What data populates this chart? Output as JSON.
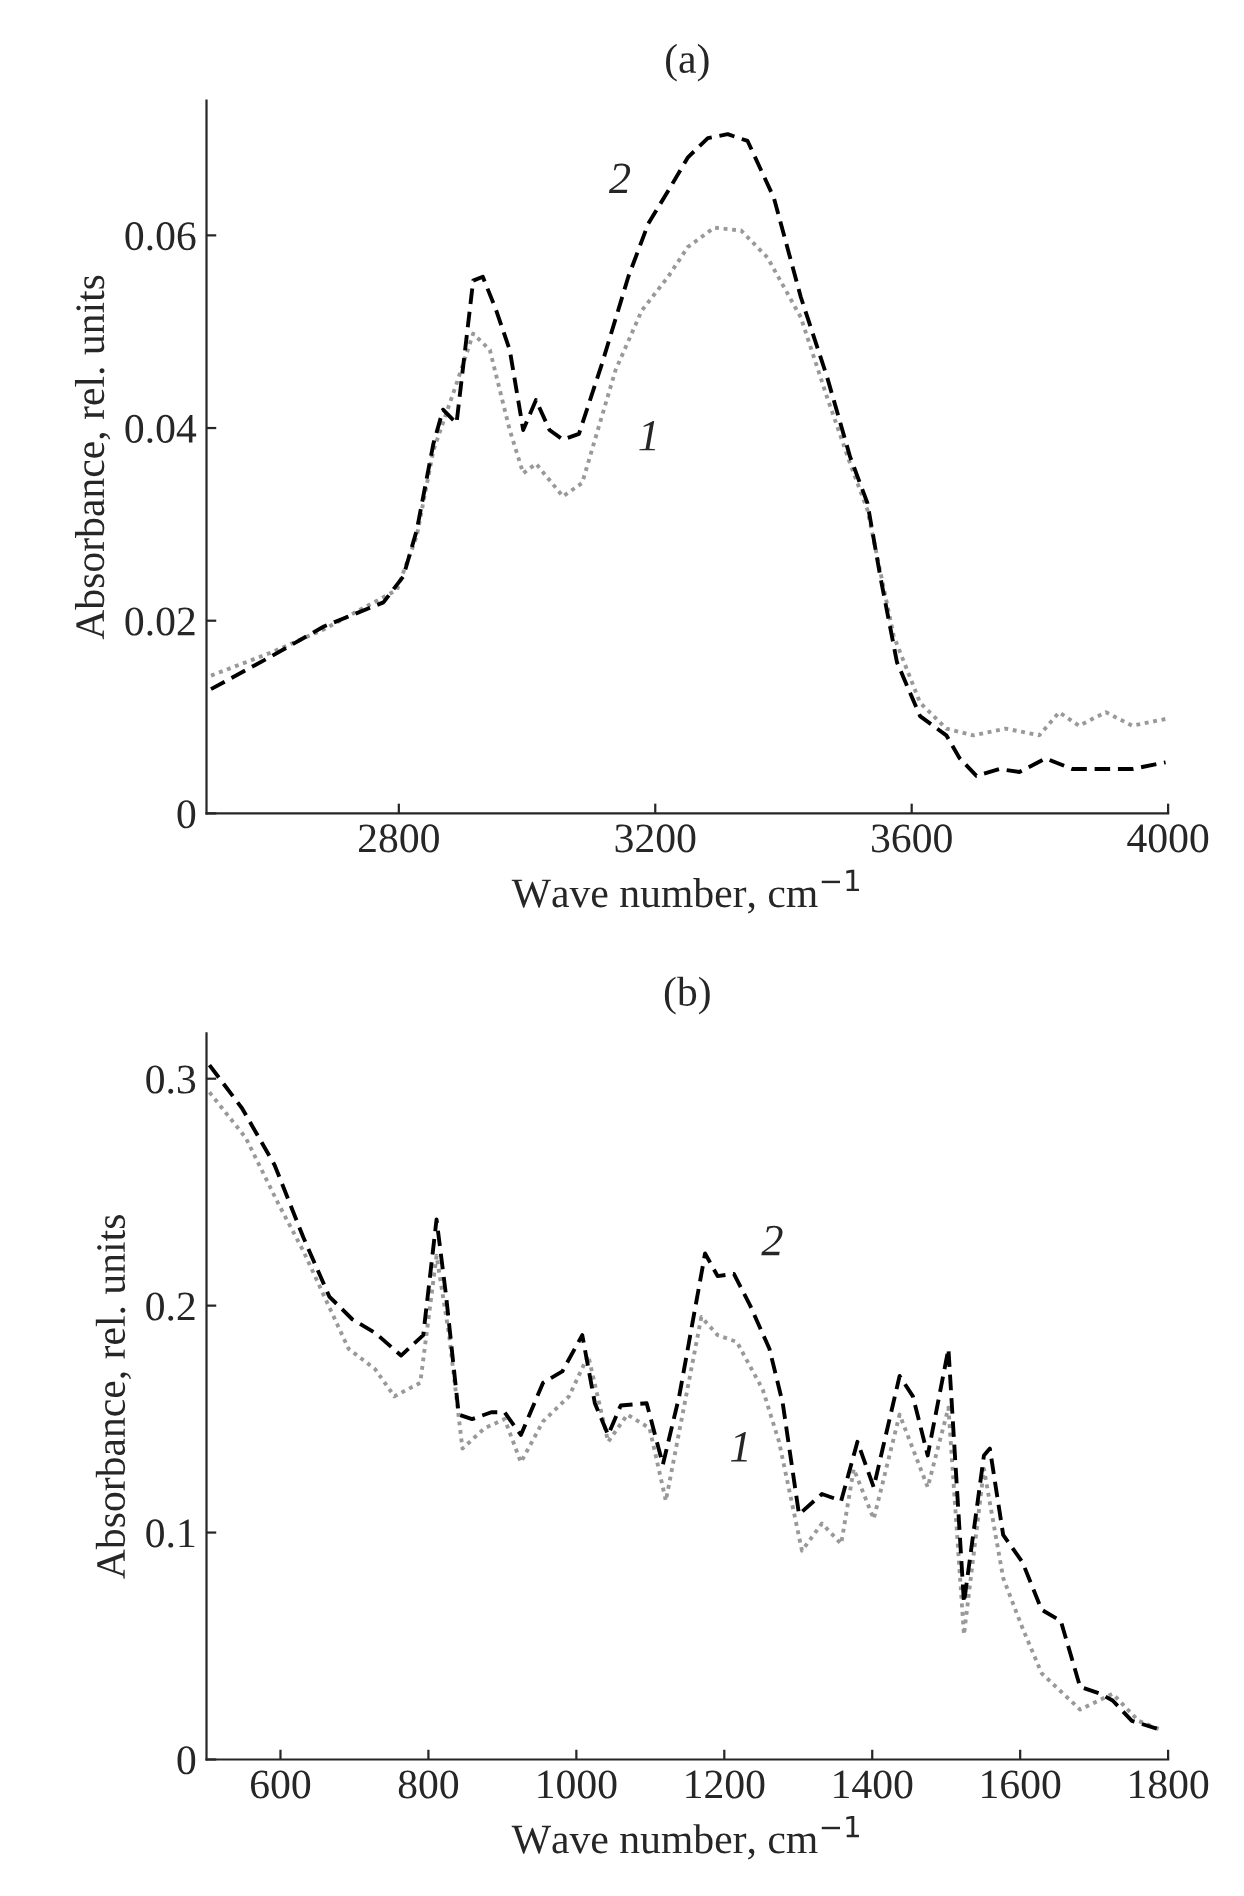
{
  "chart_data": [
    {
      "type": "line",
      "title": "(a)",
      "xlabel": "Wave number, cm$^{−1}$",
      "ylabel": "Absorbance, rel. units",
      "xlim": [
        2500,
        4000
      ],
      "ylim": [
        0,
        0.074
      ],
      "xticks": [
        2800,
        3200,
        3600,
        4000
      ],
      "yticks": [
        0,
        0.02,
        0.04,
        0.06
      ],
      "grid": false,
      "legend": false,
      "series": [
        {
          "name": "1",
          "color": "#999999",
          "line_style": "dotted",
          "x": [
            2507,
            2601,
            2683,
            2797,
            2828,
            2854,
            2890,
            2916,
            2942,
            2973,
            2994,
            3014,
            3056,
            3086,
            3138,
            3179,
            3220,
            3251,
            3292,
            3334,
            3375,
            3427,
            3468,
            3504,
            3531,
            3572,
            3613,
            3654,
            3696,
            3747,
            3799,
            3830,
            3861,
            3903,
            3944,
            3996
          ],
          "values": [
            0.0143,
            0.0167,
            0.0191,
            0.0232,
            0.0288,
            0.0377,
            0.0446,
            0.0498,
            0.0481,
            0.0398,
            0.0353,
            0.0363,
            0.0329,
            0.0343,
            0.046,
            0.0522,
            0.0557,
            0.0588,
            0.0608,
            0.0605,
            0.0577,
            0.0515,
            0.0432,
            0.0363,
            0.0315,
            0.0184,
            0.0115,
            0.0088,
            0.0081,
            0.0088,
            0.0081,
            0.0105,
            0.0091,
            0.0105,
            0.0091,
            0.0098
          ]
        },
        {
          "name": "2",
          "color": "#000000",
          "line_style": "dashed",
          "x": [
            2507,
            2601,
            2683,
            2776,
            2807,
            2828,
            2854,
            2869,
            2890,
            2916,
            2931,
            2952,
            2973,
            2994,
            3014,
            3035,
            3056,
            3081,
            3117,
            3158,
            3189,
            3220,
            3251,
            3282,
            3313,
            3344,
            3385,
            3427,
            3468,
            3504,
            3531,
            3551,
            3577,
            3613,
            3654,
            3675,
            3701,
            3737,
            3768,
            3809,
            3851,
            3892,
            3944,
            3996
          ],
          "values": [
            0.0129,
            0.0163,
            0.0194,
            0.0219,
            0.0246,
            0.0294,
            0.0384,
            0.0419,
            0.0405,
            0.0553,
            0.0557,
            0.0522,
            0.0481,
            0.0398,
            0.0429,
            0.0398,
            0.0388,
            0.0394,
            0.0467,
            0.0557,
            0.0612,
            0.0646,
            0.0681,
            0.0701,
            0.0705,
            0.0698,
            0.0639,
            0.0536,
            0.0453,
            0.037,
            0.0322,
            0.0246,
            0.0157,
            0.0101,
            0.0081,
            0.0057,
            0.0039,
            0.0046,
            0.0043,
            0.0057,
            0.0046,
            0.0046,
            0.0046,
            0.0053
          ]
        }
      ]
    },
    {
      "type": "line",
      "title": "(b)",
      "xlabel": "Wave number, cm$^{−1}$",
      "ylabel": "Absorbance, rel. units",
      "xlim": [
        500,
        1800
      ],
      "ylim": [
        0,
        0.32
      ],
      "xticks": [
        600,
        800,
        1000,
        1200,
        1400,
        1600,
        1800
      ],
      "yticks": [
        0,
        0.1,
        0.2,
        0.3
      ],
      "grid": false,
      "legend": false,
      "series": [
        {
          "name": "1",
          "color": "#999999",
          "line_style": "dotted",
          "x": [
            504,
            553,
            597,
            631,
            692,
            728,
            754,
            789,
            811,
            828,
            846,
            876,
            903,
            925,
            955,
            990,
            1016,
            1043,
            1069,
            1099,
            1121,
            1169,
            1191,
            1217,
            1252,
            1274,
            1305,
            1332,
            1358,
            1375,
            1402,
            1437,
            1475,
            1503,
            1524,
            1551,
            1577,
            1603,
            1629,
            1681,
            1725,
            1760,
            1791
          ],
          "values": [
            0.294,
            0.274,
            0.245,
            0.224,
            0.181,
            0.172,
            0.16,
            0.166,
            0.222,
            0.187,
            0.137,
            0.146,
            0.15,
            0.131,
            0.149,
            0.16,
            0.178,
            0.14,
            0.152,
            0.146,
            0.114,
            0.195,
            0.187,
            0.184,
            0.163,
            0.14,
            0.092,
            0.104,
            0.095,
            0.128,
            0.106,
            0.152,
            0.12,
            0.155,
            0.055,
            0.128,
            0.08,
            0.058,
            0.038,
            0.022,
            0.029,
            0.017,
            0.013
          ]
        },
        {
          "name": "2",
          "color": "#000000",
          "line_style": "dashed",
          "x": [
            504,
            548,
            592,
            631,
            666,
            697,
            728,
            763,
            793,
            811,
            824,
            841,
            859,
            885,
            903,
            925,
            955,
            981,
            1008,
            1025,
            1043,
            1060,
            1095,
            1117,
            1139,
            1174,
            1191,
            1213,
            1235,
            1261,
            1279,
            1301,
            1332,
            1358,
            1380,
            1402,
            1437,
            1455,
            1475,
            1503,
            1524,
            1551,
            1559,
            1577,
            1603,
            1629,
            1655,
            1681,
            1708,
            1725,
            1751,
            1791
          ],
          "values": [
            0.306,
            0.287,
            0.262,
            0.23,
            0.204,
            0.194,
            0.188,
            0.178,
            0.187,
            0.238,
            0.204,
            0.152,
            0.15,
            0.153,
            0.153,
            0.143,
            0.166,
            0.171,
            0.187,
            0.157,
            0.143,
            0.156,
            0.157,
            0.13,
            0.16,
            0.223,
            0.213,
            0.214,
            0.2,
            0.181,
            0.157,
            0.108,
            0.117,
            0.114,
            0.14,
            0.12,
            0.169,
            0.16,
            0.134,
            0.181,
            0.069,
            0.134,
            0.137,
            0.099,
            0.087,
            0.066,
            0.061,
            0.032,
            0.029,
            0.026,
            0.017,
            0.013
          ]
        }
      ]
    }
  ]
}
